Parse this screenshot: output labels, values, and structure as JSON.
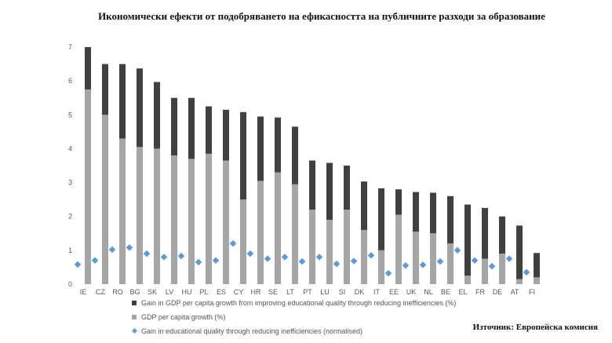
{
  "title": "Икономически ефекти от подобряването на ефикасността на публичните разходи за образование",
  "source": "Източник: Европейска комисия",
  "colors": {
    "gain_bar": "#404040",
    "growth_bar": "#a6a6a6",
    "marker": "#5b9bd5"
  },
  "chart_data": {
    "type": "bar",
    "stacked": true,
    "ylim": [
      0,
      7
    ],
    "yticks": [
      0,
      1,
      2,
      3,
      4,
      5,
      6,
      7
    ],
    "grid": false,
    "legend_position": "bottom",
    "categories": [
      "IE",
      "CZ",
      "RO",
      "BG",
      "SK",
      "LV",
      "HU",
      "PL",
      "ES",
      "CY",
      "HR",
      "SE",
      "LT",
      "PT",
      "LU",
      "SI",
      "DK",
      "IT",
      "EE",
      "UK",
      "NL",
      "BE",
      "EL",
      "FR",
      "DE",
      "AT",
      "FI"
    ],
    "series": [
      {
        "name": "GDP per capita growth (%)",
        "kind": "bar",
        "color": "#a6a6a6",
        "values": [
          5.75,
          5.0,
          4.3,
          4.05,
          4.0,
          3.8,
          3.7,
          3.85,
          3.65,
          2.5,
          3.05,
          3.3,
          2.95,
          2.2,
          1.9,
          2.2,
          1.6,
          1.0,
          2.05,
          1.55,
          1.5,
          1.2,
          0.25,
          0.75,
          0.9,
          0.15,
          0.2
        ]
      },
      {
        "name": "Gain in GDP per capita growth from improving educational quality through reducing inefficiencies (%)",
        "kind": "bar",
        "color": "#404040",
        "values": [
          1.25,
          1.5,
          2.2,
          2.32,
          1.97,
          1.7,
          1.8,
          1.4,
          1.5,
          2.58,
          1.9,
          1.62,
          1.7,
          1.45,
          1.68,
          1.3,
          1.43,
          1.83,
          0.75,
          1.17,
          1.2,
          1.4,
          2.1,
          1.5,
          1.1,
          1.58,
          0.72
        ]
      },
      {
        "name": "Gain in educational quality through reducing inefficiencies (normalised)",
        "kind": "marker",
        "color": "#5b9bd5",
        "values": [
          0.58,
          0.7,
          1.02,
          1.08,
          0.9,
          0.8,
          0.83,
          0.65,
          0.7,
          1.2,
          0.9,
          0.75,
          0.8,
          0.67,
          0.8,
          0.6,
          0.68,
          0.85,
          0.32,
          0.55,
          0.57,
          0.67,
          1.0,
          0.7,
          0.53,
          0.75,
          0.35
        ]
      }
    ]
  }
}
